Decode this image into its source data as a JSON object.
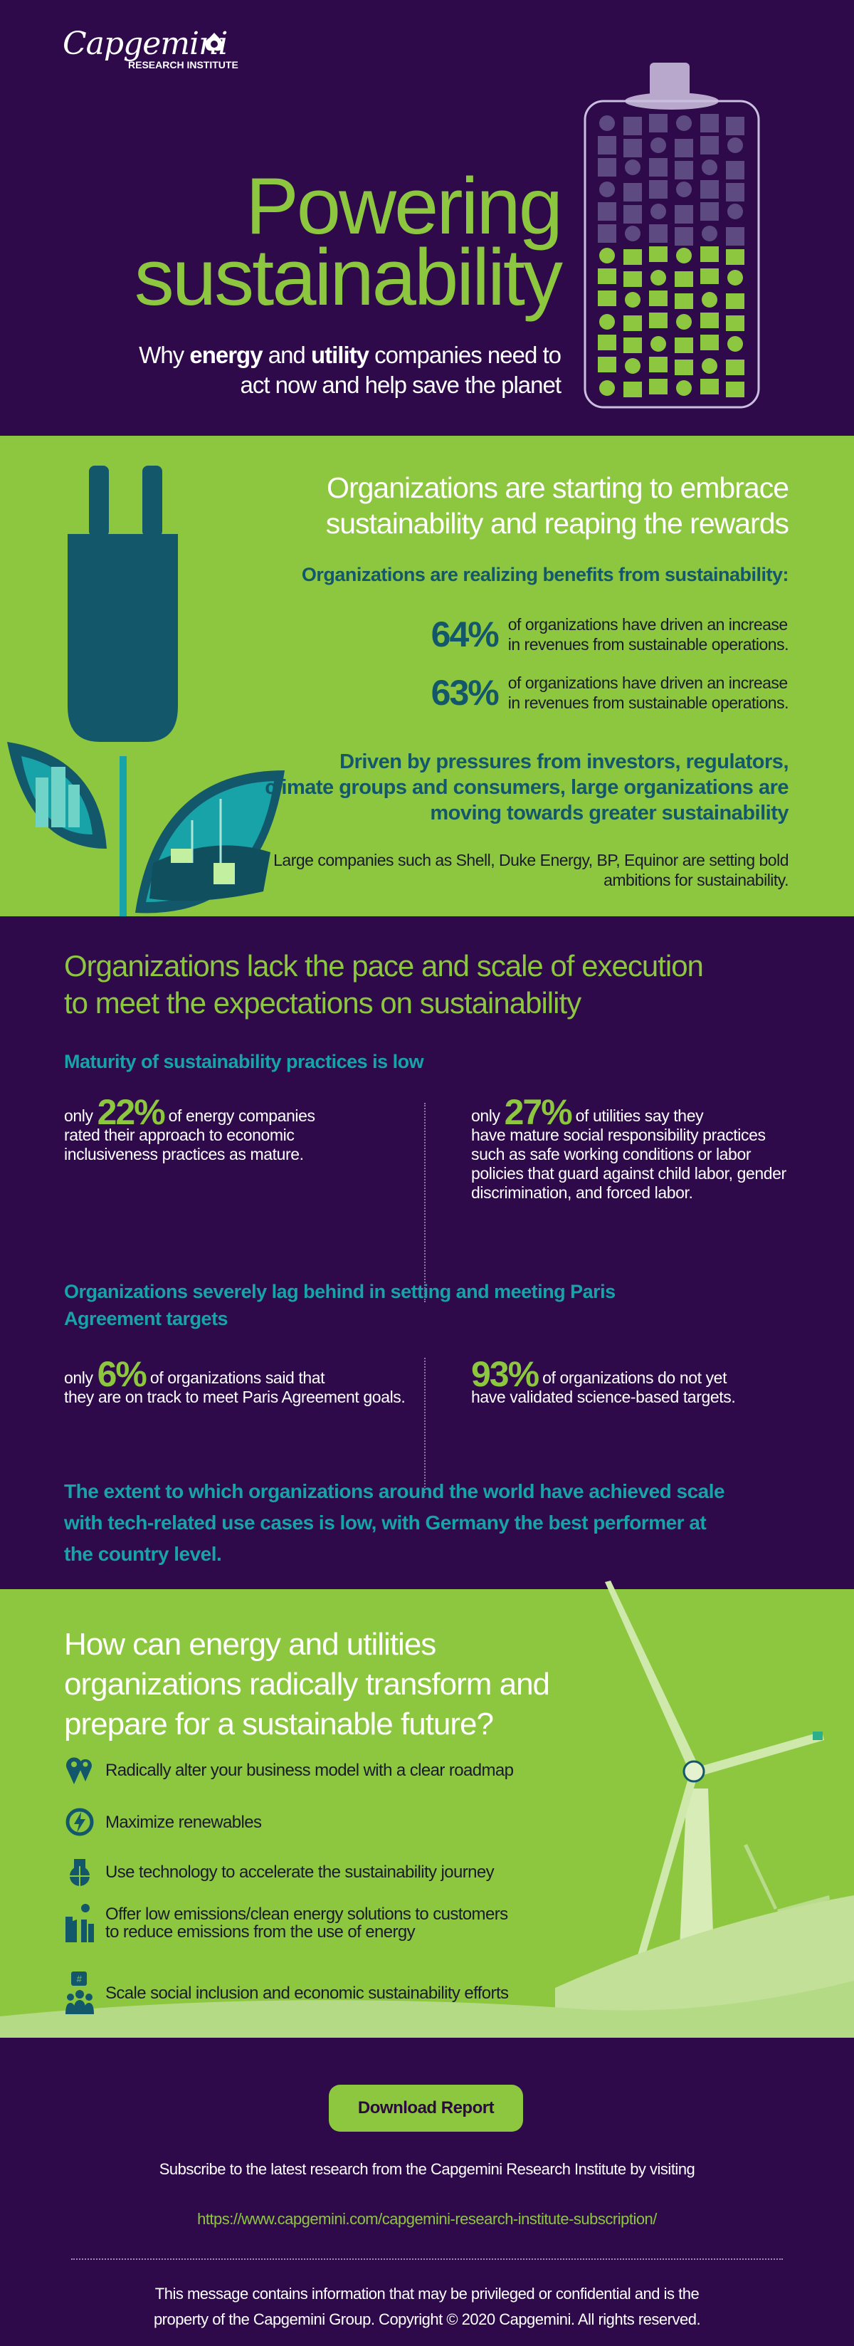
{
  "brand": {
    "name": "Capgemini",
    "sub": "RESEARCH INSTITUTE"
  },
  "hero": {
    "title_line1": "Powering",
    "title_line2": "sustainability",
    "subtitle_pre": "Why ",
    "subtitle_b1": "energy",
    "subtitle_mid": " and ",
    "subtitle_b2": "utility",
    "subtitle_post": " companies need to",
    "subtitle_line2": "act now and help save the planet"
  },
  "section1": {
    "heading_line1": "Organizations are starting to embrace",
    "heading_line2": "sustainability and reaping the rewards",
    "subheading": "Organizations are realizing benefits from sustainability:",
    "stats": [
      {
        "value": "64%",
        "line1": "of organizations have driven  an increase",
        "line2": "in revenues from sustainable operations."
      },
      {
        "value": "63%",
        "line1": "of organizations have driven  an increase",
        "line2": "in revenues from sustainable operations."
      }
    ],
    "driven_line1": "Driven by pressures from investors, regulators,",
    "driven_line2": "climate groups and consumers, large organizations are",
    "driven_line3": "moving towards greater sustainability",
    "companies_line1": "Large companies such as Shell, Duke Energy, BP,  Equinor are setting bold",
    "companies_line2": "ambitions for sustainability."
  },
  "section2": {
    "heading_line1": "Organizations lack the pace and scale of execution",
    "heading_line2": "to meet the expectations on sustainability",
    "maturity_heading": "Maturity of sustainability practices is low",
    "stat22": {
      "pre": "only ",
      "value": "22%",
      "line1": " of energy companies",
      "rest": "rated their approach to economic inclusiveness practices as mature."
    },
    "stat27": {
      "pre": "only ",
      "value": "27%",
      "line1": " of utilities say they",
      "rest": "have mature  social responsibility practices such  as safe working conditions or labor policies that guard against child labor, gender discrimination, and forced labor."
    },
    "paris_heading_line1": "Organizations severely lag behind in setting  and meeting Paris",
    "paris_heading_line2": "Agreement targets",
    "stat6": {
      "pre": "only ",
      "value": "6%",
      "line1": " of organizations said that",
      "rest": "they are on  track to meet Paris Agreement goals."
    },
    "stat93": {
      "value": "93%",
      "line1": " of organizations do not yet",
      "rest": "have validated science-based targets."
    },
    "closing_line1": "The extent to which organizations around the world  have achieved scale",
    "closing_line2": "with tech-related use cases is low, with Germany the best performer at",
    "closing_line3": "the country level."
  },
  "section3": {
    "heading_line1": "How can energy and utilities",
    "heading_line2": "organizations radically transform and",
    "heading_line3": "prepare for a sustainable future?",
    "items": [
      {
        "icon": "map-pin-icon",
        "line1": "Radically alter your business model with a clear roadmap"
      },
      {
        "icon": "renewable-energy-icon",
        "line1": "Maximize renewables"
      },
      {
        "icon": "globe-technology-icon",
        "line1": "Use technology to accelerate the sustainability journey"
      },
      {
        "icon": "clean-factory-icon",
        "line1": "Offer low emissions/clean energy solutions to customers",
        "line2": "to reduce emissions from the use of energy"
      },
      {
        "icon": "community-icon",
        "line1": "Scale social inclusion and economic sustainability efforts"
      }
    ]
  },
  "footer": {
    "download_label": "Download Report",
    "subscribe_text": "Subscribe to the latest research from the Capgemini Research Institute by visiting",
    "subscribe_url": "https://www.capgemini.com/capgemini-research-institute-subscription/",
    "legal_line1": "This message contains information that may be privileged or confidential and is the",
    "legal_line2": "property of the Capgemini Group. Copyright © 2020 Capgemini. All rights reserved."
  },
  "colors": {
    "purple": "#2e0a4a",
    "green": "#8dc63f",
    "teal_dark": "#13586a",
    "teal": "#17a3a8"
  }
}
